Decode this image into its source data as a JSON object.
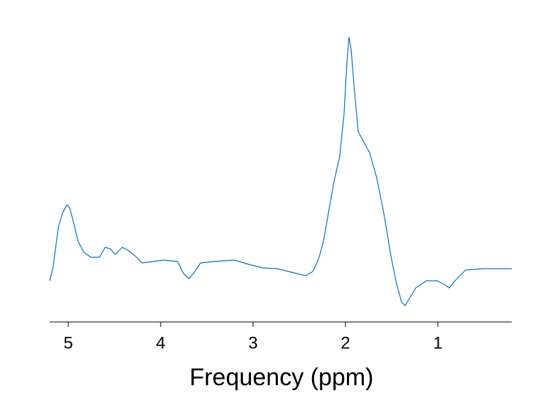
{
  "chart_data": {
    "type": "line",
    "xlabel": "Frequency (ppm)",
    "xlim": [
      5.2,
      0.2
    ],
    "ylim": [
      0,
      420
    ],
    "xticks": [
      5,
      4,
      3,
      2,
      1
    ],
    "grid": false,
    "series": [
      {
        "color": "#0072bd",
        "x": [
          5.2,
          5.162,
          5.138,
          5.108,
          5.062,
          5.015,
          4.985,
          4.938,
          4.892,
          4.831,
          4.754,
          4.662,
          4.6,
          4.546,
          4.492,
          4.415,
          4.354,
          4.277,
          4.2,
          4.085,
          3.969,
          3.815,
          3.754,
          3.692,
          3.646,
          3.569,
          3.431,
          3.2,
          3.046,
          2.892,
          2.738,
          2.585,
          2.431,
          2.354,
          2.292,
          2.238,
          2.185,
          2.123,
          2.062,
          2.015,
          1.985,
          1.962,
          1.938,
          1.908,
          1.862,
          1.8,
          1.738,
          1.662,
          1.585,
          1.508,
          1.446,
          1.392,
          1.354,
          1.308,
          1.238,
          1.123,
          1.008,
          0.931,
          0.877,
          0.815,
          0.7,
          0.508,
          0.354,
          0.2
        ],
        "values": [
          58,
          78,
          103,
          133,
          153,
          165,
          161,
          138,
          113,
          98,
          91,
          91,
          105,
          103,
          95,
          105,
          101,
          93,
          83,
          85,
          87,
          85,
          68,
          61,
          68,
          83,
          85,
          87,
          81,
          76,
          75,
          70,
          65,
          71,
          88,
          113,
          153,
          198,
          233,
          293,
          363,
          401,
          383,
          333,
          268,
          253,
          238,
          203,
          153,
          93,
          53,
          28,
          23,
          33,
          48,
          58,
          58,
          53,
          48,
          58,
          73,
          75,
          75,
          75
        ]
      }
    ]
  }
}
